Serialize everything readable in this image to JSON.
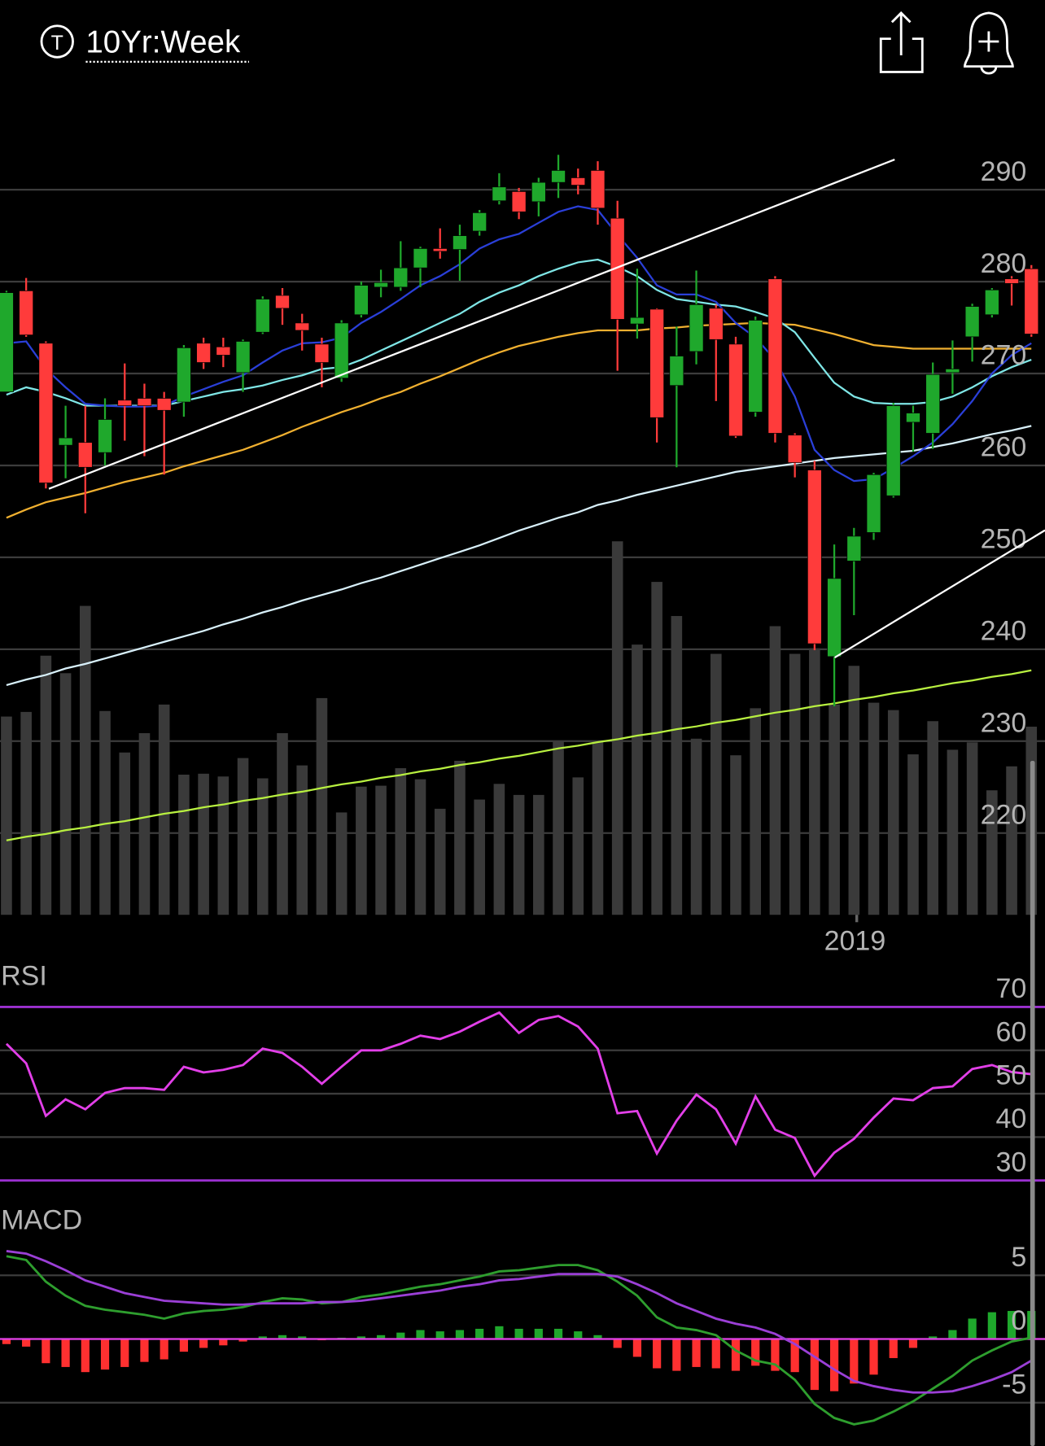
{
  "header": {
    "icon_letter": "T",
    "title": "10Yr:Week"
  },
  "chart_data": [
    {
      "type": "candlestick",
      "categories": [
        null,
        null,
        null,
        null,
        null,
        null,
        null,
        null,
        null,
        null,
        null,
        null,
        null,
        null,
        null,
        null,
        null,
        null,
        null,
        null,
        null,
        null,
        null,
        null,
        null,
        null,
        null,
        null,
        null,
        null,
        null,
        null,
        null,
        null,
        null,
        null,
        null,
        null,
        null,
        null,
        null,
        null,
        null,
        "2019",
        null,
        null,
        null,
        null,
        null,
        null,
        null,
        null,
        null
      ],
      "open": [
        268,
        279,
        273.3,
        262.2,
        262.5,
        261.4,
        267.1,
        267.3,
        267.3,
        266.9,
        273.3,
        272.9,
        270.1,
        274.5,
        278.5,
        275.5,
        273.2,
        269.5,
        276.4,
        279.4,
        279.4,
        281.5,
        283.6,
        283.5,
        285.5,
        288.8,
        289.8,
        288.7,
        290.8,
        291.3,
        292.1,
        286.9,
        275.4,
        277.0,
        268.7,
        272.4,
        277.1,
        273.2,
        265.8,
        280.3,
        263.3,
        259.5,
        239.2,
        249.6,
        252.7,
        256.7,
        264.7,
        263.5,
        270.1,
        274.0,
        276.4,
        280.3,
        281.4
      ],
      "high": [
        279,
        280.4,
        273.5,
        266.5,
        266.5,
        267.3,
        271.1,
        268.9,
        268,
        273.1,
        273.9,
        273.9,
        273.7,
        278.4,
        279.3,
        276.5,
        273.9,
        275.8,
        280.0,
        281.3,
        284.4,
        283.8,
        285.8,
        286.2,
        287.8,
        291.8,
        290.2,
        291.3,
        293.8,
        292.3,
        293.1,
        288.8,
        281.4,
        277.1,
        275.1,
        281.2,
        277.5,
        274.0,
        276.2,
        280.6,
        263.5,
        260.5,
        251.4,
        253.2,
        259.2,
        266.8,
        266.5,
        271.2,
        273.6,
        277.6,
        279.3,
        280.6,
        281.8
      ],
      "low": [
        268,
        274,
        257.5,
        258.6,
        254.8,
        260,
        262.7,
        261,
        259,
        265.3,
        270.5,
        270.7,
        268,
        274.3,
        275.3,
        272.5,
        268.5,
        269.1,
        276.1,
        278.3,
        279.0,
        279.4,
        282.5,
        280.1,
        285,
        288.4,
        286.8,
        287.1,
        289.1,
        289.5,
        286.2,
        270.3,
        273.8,
        262.5,
        259.8,
        271.0,
        267.0,
        263.0,
        265.3,
        262.5,
        258.7,
        239.9,
        233.8,
        243.7,
        251.9,
        256.5,
        261.5,
        261.8,
        267.8,
        271.3,
        276.1,
        277.4,
        274
      ],
      "close": [
        278.8,
        274.2,
        258.1,
        263.0,
        259.8,
        265.0,
        266.5,
        266.5,
        266.0,
        272.8,
        271.2,
        272.0,
        273.5,
        278.1,
        277.1,
        274.7,
        271.2,
        275.5,
        279.6,
        279.9,
        281.5,
        283.6,
        283.3,
        285.0,
        287.5,
        290.3,
        287.6,
        290.8,
        292.1,
        290.5,
        288.0,
        275.9,
        276.1,
        265.2,
        271.9,
        277.5,
        273.7,
        263.2,
        275.8,
        263.5,
        260.3,
        240.6,
        247.7,
        252.3,
        259.0,
        266.5,
        265.7,
        269.9,
        270.5,
        277.3,
        279.1,
        279.8,
        274.3
      ],
      "volume": [
        215,
        220,
        281,
        262,
        335,
        221,
        176,
        197,
        228,
        152,
        153,
        150,
        170,
        148,
        197,
        162,
        235,
        111,
        139,
        140,
        159,
        147,
        115,
        167,
        125,
        142,
        130,
        130,
        189,
        149,
        189,
        405,
        293,
        361,
        324,
        191,
        283,
        173,
        224,
        313,
        283,
        289,
        228,
        270,
        230,
        222,
        174,
        210,
        179,
        187,
        135,
        161,
        204
      ],
      "up_color": "#1fa82c",
      "down_color": "#ff3b3b",
      "volume_color": "#3a3a3a",
      "series": [
        {
          "color": "#d8f0fa",
          "values": [
            236.1,
            236.7,
            237.2,
            237.9,
            238.4,
            239.0,
            239.6,
            240.2,
            240.8,
            241.4,
            242.0,
            242.7,
            243.3,
            244.0,
            244.6,
            245.3,
            245.9,
            246.5,
            247.2,
            247.8,
            248.5,
            249.2,
            249.9,
            250.6,
            251.3,
            252.1,
            252.9,
            253.6,
            254.3,
            254.9,
            255.7,
            256.2,
            256.8,
            257.3,
            257.8,
            258.3,
            258.8,
            259.3,
            259.6,
            259.9,
            260.2,
            260.5,
            260.8,
            261.0,
            261.2,
            261.4,
            261.6,
            262.0,
            262.4,
            262.9,
            263.4,
            263.8,
            264.3
          ]
        },
        {
          "color": "#b8f040",
          "values": [
            219.2,
            219.6,
            219.9,
            220.3,
            220.6,
            221.0,
            221.3,
            221.7,
            222.1,
            222.4,
            222.8,
            223.1,
            223.5,
            223.8,
            224.2,
            224.5,
            224.9,
            225.3,
            225.6,
            226.0,
            226.3,
            226.7,
            227.0,
            227.4,
            227.7,
            228.1,
            228.4,
            228.8,
            229.2,
            229.5,
            229.9,
            230.2,
            230.6,
            230.9,
            231.3,
            231.6,
            232.0,
            232.3,
            232.7,
            233.1,
            233.4,
            233.8,
            234.1,
            234.5,
            234.8,
            235.2,
            235.5,
            235.9,
            236.3,
            236.6,
            237.0,
            237.3,
            237.7
          ]
        },
        {
          "color": "#f0b030",
          "values": [
            254.3,
            255.2,
            256.0,
            256.5,
            257.0,
            257.6,
            258.2,
            258.7,
            259.2,
            259.9,
            260.5,
            261.1,
            261.7,
            262.5,
            263.3,
            264.2,
            265.0,
            265.8,
            266.5,
            267.3,
            268.0,
            268.9,
            269.7,
            270.6,
            271.5,
            272.3,
            273.0,
            273.5,
            274.0,
            274.4,
            274.7,
            274.7,
            274.7,
            274.9,
            275.0,
            275.2,
            275.3,
            275.4,
            275.5,
            275.4,
            275.3,
            274.8,
            274.3,
            273.7,
            273.1,
            272.9,
            272.7,
            272.7,
            272.7,
            272.7,
            272.7,
            272.7,
            272.7
          ]
        },
        {
          "color": "#7fe6e6",
          "values": [
            267.7,
            268.5,
            268.0,
            267.3,
            266.5,
            266.5,
            266.5,
            266.5,
            266.5,
            267.0,
            267.5,
            268.0,
            268.3,
            268.7,
            269.3,
            269.8,
            270.5,
            270.7,
            271.5,
            272.5,
            273.5,
            274.5,
            275.5,
            276.5,
            277.8,
            278.8,
            279.6,
            280.6,
            281.4,
            282.1,
            282.4,
            281.6,
            280.6,
            279.1,
            278.1,
            277.8,
            277.5,
            277.3,
            276.7,
            276.0,
            274.5,
            271.7,
            269.0,
            267.5,
            266.8,
            266.7,
            266.7,
            266.9,
            267.5,
            268.5,
            269.7,
            270.7,
            271.5
          ]
        },
        {
          "color": "#2a3fd8",
          "values": [
            273.3,
            273.5,
            270.5,
            268.5,
            266.7,
            266.5,
            266.4,
            266.4,
            266.5,
            267.5,
            268.3,
            269.1,
            269.8,
            271.2,
            272.5,
            273.3,
            273.4,
            273.9,
            275.5,
            276.7,
            278.1,
            279.6,
            280.6,
            281.9,
            283.6,
            284.6,
            285.2,
            286.4,
            287.6,
            288.2,
            287.8,
            285.1,
            282.6,
            279.6,
            278.6,
            278.6,
            277.8,
            275.5,
            273.9,
            271.5,
            267.5,
            261.7,
            259.5,
            258.3,
            258.5,
            259.7,
            261.0,
            262.5,
            264.5,
            267.0,
            270.0,
            272.0,
            273.3
          ]
        }
      ],
      "ylim": [
        211.1,
        297.6
      ],
      "yticks": [
        220,
        230,
        240,
        250,
        260,
        270,
        280,
        290
      ],
      "grid": true
    },
    {
      "type": "line",
      "title": "RSI",
      "series": [
        {
          "color": "#e23fe8",
          "values": [
            61.5,
            57.0,
            44.9,
            48.7,
            46.4,
            50.2,
            51.3,
            51.3,
            50.9,
            56.2,
            54.9,
            55.5,
            56.6,
            60.4,
            59.4,
            56.2,
            52.3,
            56.2,
            60.0,
            60.0,
            61.5,
            63.4,
            62.6,
            64.3,
            66.6,
            68.7,
            64.0,
            67.0,
            67.9,
            65.5,
            60.4,
            45.5,
            46.0,
            36.2,
            43.8,
            49.8,
            46.4,
            38.5,
            49.4,
            41.7,
            39.8,
            31.1,
            36.4,
            39.6,
            44.5,
            48.9,
            48.5,
            51.3,
            51.7,
            55.7,
            56.6,
            55.0,
            54.5
          ]
        }
      ],
      "ylim": [
        26.4,
        82.1
      ],
      "yticks": [
        30,
        40,
        50,
        60,
        70
      ],
      "grid": true
    },
    {
      "type": "line",
      "title": "MACD",
      "series": [
        {
          "type": "bar",
          "color": "#1fa82c",
          "negative_color": "#ff3030",
          "values": [
            -0.4,
            -0.6,
            -1.9,
            -2.2,
            -2.6,
            -2.4,
            -2.2,
            -1.8,
            -1.6,
            -1.0,
            -0.7,
            -0.5,
            -0.2,
            0.2,
            0.3,
            0.2,
            -0.1,
            0.1,
            0.2,
            0.3,
            0.5,
            0.7,
            0.6,
            0.7,
            0.8,
            1.0,
            0.8,
            0.8,
            0.8,
            0.6,
            0.3,
            -0.7,
            -1.4,
            -2.3,
            -2.5,
            -2.2,
            -2.3,
            -2.5,
            -2.1,
            -2.5,
            -2.6,
            -4.0,
            -4.1,
            -3.5,
            -2.8,
            -1.5,
            -0.7,
            0.2,
            0.7,
            1.6,
            2.1,
            2.2,
            2.2
          ]
        },
        {
          "color": "#2e9e2e",
          "values": [
            6.5,
            6.2,
            4.5,
            3.4,
            2.6,
            2.3,
            2.1,
            1.9,
            1.6,
            2.0,
            2.2,
            2.3,
            2.5,
            2.9,
            3.2,
            3.1,
            2.8,
            2.9,
            3.3,
            3.5,
            3.8,
            4.1,
            4.3,
            4.6,
            4.9,
            5.3,
            5.4,
            5.6,
            5.8,
            5.8,
            5.4,
            4.5,
            3.4,
            1.7,
            0.9,
            0.7,
            0.3,
            -0.9,
            -1.7,
            -2.0,
            -3.2,
            -5.1,
            -6.2,
            -6.7,
            -6.4,
            -5.7,
            -4.9,
            -3.9,
            -2.9,
            -1.7,
            -0.9,
            -0.2,
            0.1
          ]
        },
        {
          "color": "#9b3fd6",
          "values": [
            6.9,
            6.7,
            6.1,
            5.4,
            4.6,
            4.1,
            3.6,
            3.3,
            3.0,
            2.9,
            2.8,
            2.7,
            2.7,
            2.8,
            2.8,
            2.8,
            2.9,
            2.9,
            3.0,
            3.2,
            3.4,
            3.6,
            3.8,
            4.1,
            4.3,
            4.6,
            4.7,
            4.9,
            5.1,
            5.1,
            5.1,
            4.9,
            4.3,
            3.6,
            2.8,
            2.2,
            1.6,
            1.2,
            0.9,
            0.4,
            -0.4,
            -1.4,
            -2.4,
            -3.3,
            -3.7,
            -4.0,
            -4.2,
            -4.2,
            -4.1,
            -3.7,
            -3.2,
            -2.6,
            -1.7
          ]
        }
      ],
      "ylim": [
        -8.4,
        11.0
      ],
      "yticks": [
        -5,
        0,
        5
      ],
      "grid": true
    }
  ]
}
